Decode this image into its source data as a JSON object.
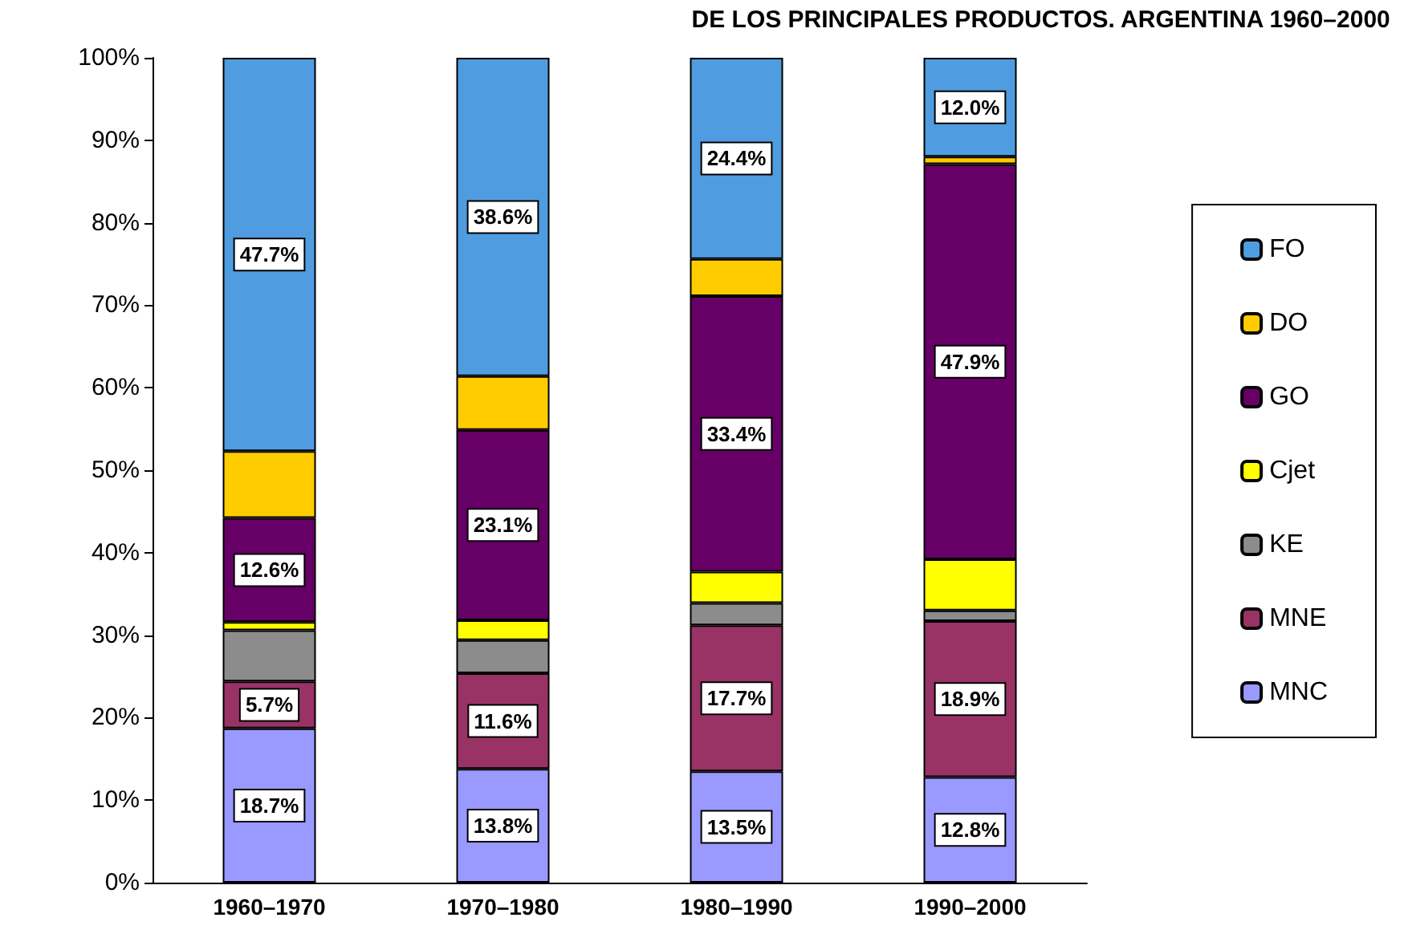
{
  "chart_data": {
    "type": "bar",
    "title": "DE LOS PRINCIPALES PRODUCTOS. ARGENTINA 1960–2000",
    "stacked": true,
    "grid": false,
    "legend": "right",
    "categories": [
      "1960–1970",
      "1970–1980",
      "1980–1990",
      "1990–2000"
    ],
    "ylim": [
      0,
      100
    ],
    "yticks": [
      {
        "value": 0,
        "label": "0%"
      },
      {
        "value": 10,
        "label": "10%"
      },
      {
        "value": 20,
        "label": "20%"
      },
      {
        "value": 30,
        "label": "30%"
      },
      {
        "value": 40,
        "label": "40%"
      },
      {
        "value": 50,
        "label": "50%"
      },
      {
        "value": 60,
        "label": "60%"
      },
      {
        "value": 70,
        "label": "70%"
      },
      {
        "value": 80,
        "label": "80%"
      },
      {
        "value": 90,
        "label": "90%"
      },
      {
        "value": 100,
        "label": "100%"
      }
    ],
    "series": [
      {
        "name": "MNC",
        "color": "#9999ff",
        "values": [
          18.7,
          13.8,
          13.5,
          12.8
        ],
        "value_labels": [
          "18.7%",
          "13.8%",
          "13.5%",
          "12.8%"
        ]
      },
      {
        "name": "MNE",
        "color": "#993366",
        "values": [
          5.7,
          11.6,
          17.7,
          18.9
        ],
        "value_labels": [
          "5.7%",
          "11.6%",
          "17.7%",
          "18.9%"
        ]
      },
      {
        "name": "KE",
        "color": "#8c8c8c",
        "values": [
          6.2,
          4.0,
          2.7,
          1.3
        ],
        "value_labels": [
          null,
          null,
          null,
          null
        ]
      },
      {
        "name": "Cjet",
        "color": "#ffff00",
        "values": [
          1.0,
          2.4,
          3.8,
          6.2
        ],
        "value_labels": [
          null,
          null,
          null,
          null
        ]
      },
      {
        "name": "GO",
        "color": "#660066",
        "values": [
          12.6,
          23.1,
          33.4,
          47.9
        ],
        "value_labels": [
          "12.6%",
          "23.1%",
          "33.4%",
          "47.9%"
        ]
      },
      {
        "name": "DO",
        "color": "#ffcc00",
        "values": [
          8.1,
          6.5,
          4.5,
          0.9
        ],
        "value_labels": [
          null,
          null,
          null,
          null
        ]
      },
      {
        "name": "FO",
        "color": "#4f9de0",
        "values": [
          47.7,
          38.6,
          24.4,
          12.0
        ],
        "value_labels": [
          "47.7%",
          "38.6%",
          "24.4%",
          "12.0%"
        ]
      }
    ]
  }
}
